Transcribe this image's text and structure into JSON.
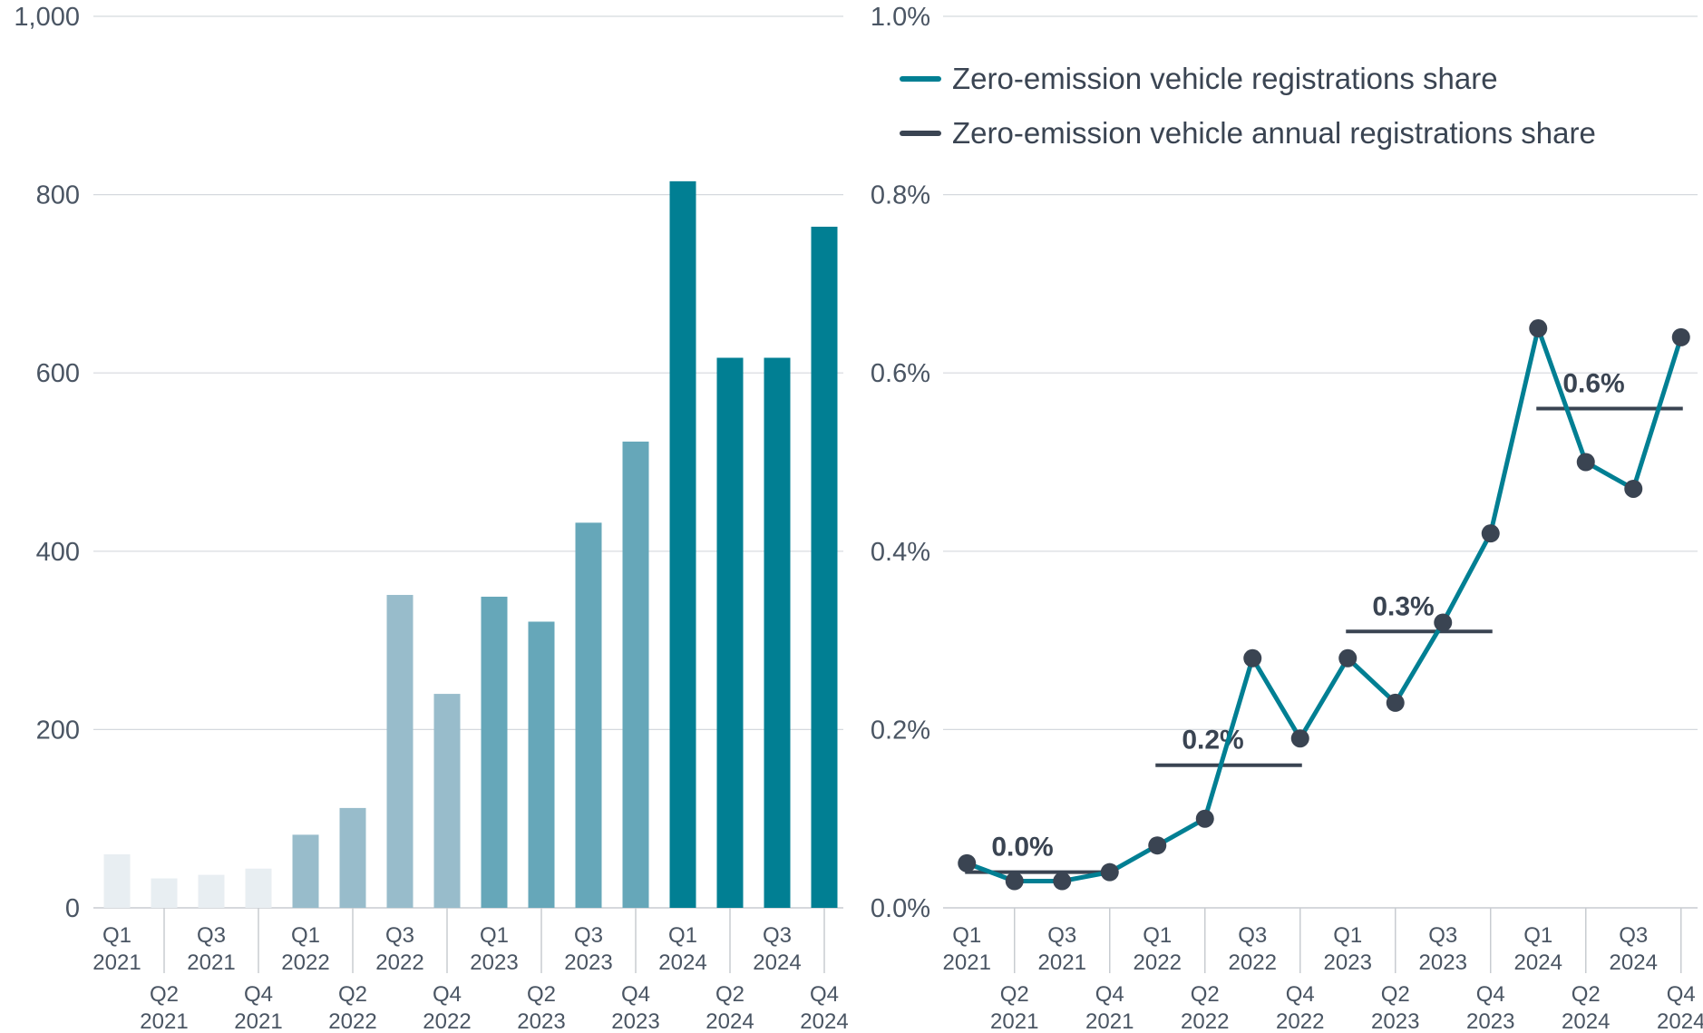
{
  "chart_data": [
    {
      "type": "bar",
      "title": "",
      "xlabel": "",
      "ylabel": "",
      "ylim": [
        0,
        1000
      ],
      "yticks": [
        0,
        200,
        400,
        600,
        800,
        1000
      ],
      "ytick_labels": [
        "0",
        "200",
        "400",
        "600",
        "800",
        "1,000"
      ],
      "grid": true,
      "categories": [
        "Q1 2021",
        "Q2 2021",
        "Q3 2021",
        "Q4 2021",
        "Q1 2022",
        "Q2 2022",
        "Q3 2022",
        "Q4 2022",
        "Q1 2023",
        "Q2 2023",
        "Q3 2023",
        "Q4 2023",
        "Q1 2024",
        "Q2 2024",
        "Q3 2024",
        "Q4 2024"
      ],
      "category_lines": [
        [
          "Q1",
          "2021"
        ],
        [
          "Q2",
          "2021"
        ],
        [
          "Q3",
          "2021"
        ],
        [
          "Q4",
          "2021"
        ],
        [
          "Q1",
          "2022"
        ],
        [
          "Q2",
          "2022"
        ],
        [
          "Q3",
          "2022"
        ],
        [
          "Q4",
          "2022"
        ],
        [
          "Q1",
          "2023"
        ],
        [
          "Q2",
          "2023"
        ],
        [
          "Q3",
          "2023"
        ],
        [
          "Q4",
          "2023"
        ],
        [
          "Q1",
          "2024"
        ],
        [
          "Q2",
          "2024"
        ],
        [
          "Q3",
          "2024"
        ],
        [
          "Q4",
          "2024"
        ]
      ],
      "values": [
        60,
        33,
        37,
        44,
        82,
        112,
        351,
        240,
        349,
        321,
        432,
        523,
        815,
        617,
        617,
        764
      ],
      "bar_colors": [
        "#e8eef2",
        "#e8eef2",
        "#e8eef2",
        "#e8eef2",
        "#98bccb",
        "#98bccb",
        "#98bccb",
        "#98bccb",
        "#66a7b9",
        "#66a7b9",
        "#66a7b9",
        "#66a7b9",
        "#017f93",
        "#017f93",
        "#017f93",
        "#017f93"
      ]
    },
    {
      "type": "line",
      "title": "",
      "xlabel": "",
      "ylabel": "",
      "ylim": [
        0,
        1.0
      ],
      "yticks": [
        0,
        0.2,
        0.4,
        0.6,
        0.8,
        1.0
      ],
      "ytick_labels": [
        "0.0%",
        "0.2%",
        "0.4%",
        "0.6%",
        "0.8%",
        "1.0%"
      ],
      "grid": true,
      "legend_position": "top-right",
      "categories": [
        "Q1 2021",
        "Q2 2021",
        "Q3 2021",
        "Q4 2021",
        "Q1 2022",
        "Q2 2022",
        "Q3 2022",
        "Q4 2022",
        "Q1 2023",
        "Q2 2023",
        "Q3 2023",
        "Q4 2023",
        "Q1 2024",
        "Q2 2024",
        "Q3 2024",
        "Q4 2024"
      ],
      "category_lines": [
        [
          "Q1",
          "2021"
        ],
        [
          "Q2",
          "2021"
        ],
        [
          "Q3",
          "2021"
        ],
        [
          "Q4",
          "2021"
        ],
        [
          "Q1",
          "2022"
        ],
        [
          "Q2",
          "2022"
        ],
        [
          "Q3",
          "2022"
        ],
        [
          "Q4",
          "2022"
        ],
        [
          "Q1",
          "2023"
        ],
        [
          "Q2",
          "2023"
        ],
        [
          "Q3",
          "2023"
        ],
        [
          "Q4",
          "2023"
        ],
        [
          "Q1",
          "2024"
        ],
        [
          "Q2",
          "2024"
        ],
        [
          "Q3",
          "2024"
        ],
        [
          "Q4",
          "2024"
        ]
      ],
      "series": [
        {
          "name": "Zero-emission vehicle registrations share",
          "color": "#017f93",
          "marker_color": "#3a4452",
          "values": [
            0.05,
            0.03,
            0.03,
            0.04,
            0.07,
            0.1,
            0.28,
            0.19,
            0.28,
            0.23,
            0.32,
            0.42,
            0.65,
            0.5,
            0.47,
            0.64
          ]
        },
        {
          "name": "Zero-emission vehicle annual registrations share",
          "color": "#3a4452",
          "annual": [
            {
              "year": "2021",
              "value": 0.04,
              "label": "0.0%",
              "start_index": 0,
              "end_index": 3
            },
            {
              "year": "2022",
              "value": 0.16,
              "label": "0.2%",
              "start_index": 4,
              "end_index": 7
            },
            {
              "year": "2023",
              "value": 0.31,
              "label": "0.3%",
              "start_index": 8,
              "end_index": 11
            },
            {
              "year": "2024",
              "value": 0.56,
              "label": "0.6%",
              "start_index": 12,
              "end_index": 15
            }
          ]
        }
      ]
    }
  ]
}
